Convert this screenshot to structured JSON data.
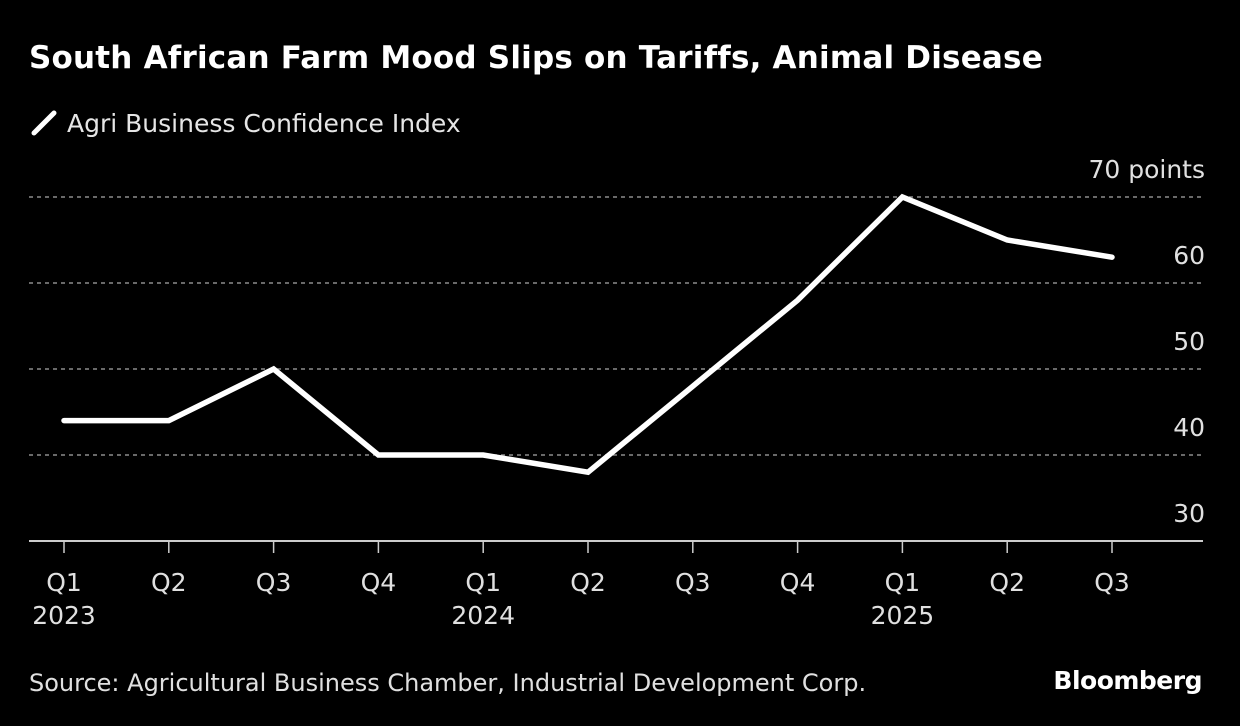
{
  "header": {
    "title": "South African Farm Mood Slips on Tariffs, Animal Disease",
    "legend_label": "Agri Business Confidence Index"
  },
  "footer": {
    "source": "Source: Agricultural Business Chamber, Industrial Development Corp.",
    "brand": "Bloomberg"
  },
  "colors": {
    "background": "#000000",
    "line": "#ffffff",
    "grid": "#8c8c8c",
    "axis": "#cccccc",
    "text": "#e0e0e0"
  },
  "chart_data": {
    "type": "line",
    "title": "South African Farm Mood Slips on Tariffs, Animal Disease",
    "xlabel": "",
    "ylabel": "points",
    "ylim": [
      30,
      70
    ],
    "yticks": [
      30,
      40,
      50,
      60,
      70
    ],
    "ytick_labels": [
      "30",
      "40",
      "50",
      "60",
      "70 points"
    ],
    "grid": true,
    "legend_position": "top-left",
    "categories": [
      "Q1 2023",
      "Q2 2023",
      "Q3 2023",
      "Q4 2023",
      "Q1 2024",
      "Q2 2024",
      "Q3 2024",
      "Q4 2024",
      "Q1 2025",
      "Q2 2025",
      "Q3 2025"
    ],
    "x_quarter_labels": [
      "Q1",
      "Q2",
      "Q3",
      "Q4",
      "Q1",
      "Q2",
      "Q3",
      "Q4",
      "Q1",
      "Q2",
      "Q3"
    ],
    "x_year_labels": [
      "2023",
      "",
      "",
      "",
      "2024",
      "",
      "",
      "",
      "2025",
      "",
      ""
    ],
    "series": [
      {
        "name": "Agri Business Confidence Index",
        "values": [
          44,
          44,
          50,
          40,
          40,
          38,
          48,
          58,
          70,
          65,
          63
        ]
      }
    ]
  }
}
